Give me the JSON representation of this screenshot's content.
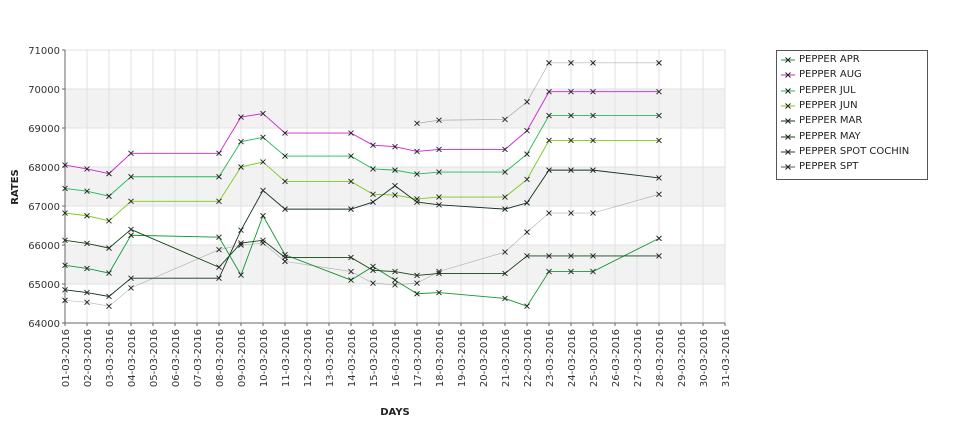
{
  "chart_data": {
    "type": "line",
    "title": "",
    "xlabel": "DAYS",
    "ylabel": "RATES",
    "ylim": [
      64000,
      71000
    ],
    "yticks": [
      64000,
      65000,
      66000,
      67000,
      68000,
      69000,
      70000,
      71000
    ],
    "grid": true,
    "legend_position": "right",
    "categories": [
      "01-03-2016",
      "02-03-2016",
      "03-03-2016",
      "04-03-2016",
      "05-03-2016",
      "06-03-2016",
      "07-03-2016",
      "08-03-2016",
      "09-03-2016",
      "10-03-2016",
      "11-03-2016",
      "12-03-2016",
      "13-03-2016",
      "14-03-2016",
      "15-03-2016",
      "16-03-2016",
      "17-03-2016",
      "18-03-2016",
      "19-03-2016",
      "20-03-2016",
      "21-03-2016",
      "22-03-2016",
      "23-03-2016",
      "24-03-2016",
      "25-03-2016",
      "26-03-2016",
      "27-03-2016",
      "28-03-2016",
      "29-03-2016",
      "30-03-2016",
      "31-03-2016"
    ],
    "series": [
      {
        "name": "PEPPER APR",
        "color": "#119933",
        "points": [
          [
            "01-03-2016",
            65480
          ],
          [
            "02-03-2016",
            65400
          ],
          [
            "03-03-2016",
            65280
          ],
          [
            "04-03-2016",
            66250
          ],
          [
            "08-03-2016",
            66200
          ],
          [
            "09-03-2016",
            65230
          ],
          [
            "10-03-2016",
            66750
          ],
          [
            "11-03-2016",
            65750
          ],
          [
            "14-03-2016",
            65100
          ],
          [
            "15-03-2016",
            65450
          ],
          [
            "16-03-2016",
            65100
          ],
          [
            "17-03-2016",
            64750
          ],
          [
            "18-03-2016",
            64780
          ],
          [
            "21-03-2016",
            64630
          ],
          [
            "22-03-2016",
            64430
          ],
          [
            "23-03-2016",
            65320
          ],
          [
            "24-03-2016",
            65320
          ],
          [
            "25-03-2016",
            65320
          ],
          [
            "28-03-2016",
            66170
          ]
        ]
      },
      {
        "name": "PEPPER AUG",
        "color": "#cc22cc",
        "points": [
          [
            "01-03-2016",
            68050
          ],
          [
            "02-03-2016",
            67950
          ],
          [
            "03-03-2016",
            67830
          ],
          [
            "04-03-2016",
            68350
          ],
          [
            "08-03-2016",
            68350
          ],
          [
            "09-03-2016",
            69280
          ],
          [
            "10-03-2016",
            69370
          ],
          [
            "11-03-2016",
            68870
          ],
          [
            "14-03-2016",
            68870
          ],
          [
            "15-03-2016",
            68560
          ],
          [
            "16-03-2016",
            68520
          ],
          [
            "17-03-2016",
            68400
          ],
          [
            "18-03-2016",
            68450
          ],
          [
            "21-03-2016",
            68450
          ],
          [
            "22-03-2016",
            68930
          ],
          [
            "23-03-2016",
            69930
          ],
          [
            "24-03-2016",
            69930
          ],
          [
            "25-03-2016",
            69930
          ],
          [
            "28-03-2016",
            69930
          ]
        ]
      },
      {
        "name": "PEPPER JUL",
        "color": "#22bb55",
        "points": [
          [
            "01-03-2016",
            67450
          ],
          [
            "02-03-2016",
            67380
          ],
          [
            "03-03-2016",
            67250
          ],
          [
            "04-03-2016",
            67750
          ],
          [
            "08-03-2016",
            67750
          ],
          [
            "09-03-2016",
            68650
          ],
          [
            "10-03-2016",
            68760
          ],
          [
            "11-03-2016",
            68280
          ],
          [
            "14-03-2016",
            68280
          ],
          [
            "15-03-2016",
            67950
          ],
          [
            "16-03-2016",
            67920
          ],
          [
            "17-03-2016",
            67820
          ],
          [
            "18-03-2016",
            67870
          ],
          [
            "21-03-2016",
            67870
          ],
          [
            "22-03-2016",
            68330
          ],
          [
            "23-03-2016",
            69320
          ],
          [
            "24-03-2016",
            69320
          ],
          [
            "25-03-2016",
            69320
          ],
          [
            "28-03-2016",
            69320
          ]
        ]
      },
      {
        "name": "PEPPER JUN",
        "color": "#77cc11",
        "points": [
          [
            "01-03-2016",
            66820
          ],
          [
            "02-03-2016",
            66750
          ],
          [
            "03-03-2016",
            66620
          ],
          [
            "04-03-2016",
            67120
          ],
          [
            "08-03-2016",
            67120
          ],
          [
            "09-03-2016",
            68000
          ],
          [
            "10-03-2016",
            68130
          ],
          [
            "11-03-2016",
            67630
          ],
          [
            "14-03-2016",
            67630
          ],
          [
            "15-03-2016",
            67300
          ],
          [
            "16-03-2016",
            67280
          ],
          [
            "17-03-2016",
            67180
          ],
          [
            "18-03-2016",
            67230
          ],
          [
            "21-03-2016",
            67230
          ],
          [
            "22-03-2016",
            67680
          ],
          [
            "23-03-2016",
            68680
          ],
          [
            "24-03-2016",
            68680
          ],
          [
            "25-03-2016",
            68680
          ],
          [
            "28-03-2016",
            68680
          ]
        ]
      },
      {
        "name": "PEPPER MAR",
        "color": "#113322",
        "points": [
          [
            "01-03-2016",
            64850
          ],
          [
            "02-03-2016",
            64780
          ],
          [
            "03-03-2016",
            64680
          ],
          [
            "04-03-2016",
            65150
          ],
          [
            "08-03-2016",
            65150
          ],
          [
            "09-03-2016",
            66380
          ],
          [
            "10-03-2016",
            67400
          ],
          [
            "11-03-2016",
            66920
          ],
          [
            "14-03-2016",
            66920
          ],
          [
            "15-03-2016",
            67100
          ],
          [
            "16-03-2016",
            67520
          ],
          [
            "17-03-2016",
            67100
          ],
          [
            "18-03-2016",
            67030
          ],
          [
            "21-03-2016",
            66920
          ],
          [
            "22-03-2016",
            67080
          ],
          [
            "23-03-2016",
            67920
          ],
          [
            "24-03-2016",
            67920
          ],
          [
            "25-03-2016",
            67920
          ],
          [
            "28-03-2016",
            67720
          ]
        ]
      },
      {
        "name": "PEPPER MAY",
        "color": "#114411",
        "points": [
          [
            "01-03-2016",
            66120
          ],
          [
            "02-03-2016",
            66040
          ],
          [
            "03-03-2016",
            65920
          ],
          [
            "04-03-2016",
            66400
          ],
          [
            "08-03-2016",
            65430
          ],
          [
            "09-03-2016",
            66050
          ],
          [
            "10-03-2016",
            66120
          ],
          [
            "11-03-2016",
            65680
          ],
          [
            "14-03-2016",
            65680
          ],
          [
            "15-03-2016",
            65350
          ],
          [
            "16-03-2016",
            65320
          ],
          [
            "17-03-2016",
            65220
          ],
          [
            "18-03-2016",
            65270
          ],
          [
            "21-03-2016",
            65270
          ],
          [
            "22-03-2016",
            65720
          ],
          [
            "23-03-2016",
            65720
          ],
          [
            "24-03-2016",
            65720
          ],
          [
            "25-03-2016",
            65720
          ],
          [
            "28-03-2016",
            65720
          ]
        ]
      },
      {
        "name": "PEPPER SPOT COCHIN",
        "color": "#333333",
        "points": [
          [
            "17-03-2016",
            69120
          ],
          [
            "18-03-2016",
            69200
          ],
          [
            "21-03-2016",
            69220
          ],
          [
            "22-03-2016",
            69670
          ],
          [
            "23-03-2016",
            70670
          ],
          [
            "24-03-2016",
            70670
          ],
          [
            "25-03-2016",
            70670
          ],
          [
            "28-03-2016",
            70670
          ]
        ]
      },
      {
        "name": "PEPPER SPT",
        "color": "#555555",
        "points": [
          [
            "01-03-2016",
            64580
          ],
          [
            "02-03-2016",
            64530
          ],
          [
            "03-03-2016",
            64430
          ],
          [
            "04-03-2016",
            64900
          ],
          [
            "08-03-2016",
            65880
          ],
          [
            "09-03-2016",
            66000
          ],
          [
            "10-03-2016",
            66050
          ],
          [
            "11-03-2016",
            65580
          ],
          [
            "14-03-2016",
            65320
          ],
          [
            "15-03-2016",
            65020
          ],
          [
            "16-03-2016",
            64980
          ],
          [
            "17-03-2016",
            65020
          ],
          [
            "18-03-2016",
            65320
          ],
          [
            "21-03-2016",
            65820
          ],
          [
            "22-03-2016",
            66330
          ],
          [
            "23-03-2016",
            66820
          ],
          [
            "24-03-2016",
            66820
          ],
          [
            "25-03-2016",
            66820
          ],
          [
            "28-03-2016",
            67300
          ]
        ]
      }
    ]
  }
}
